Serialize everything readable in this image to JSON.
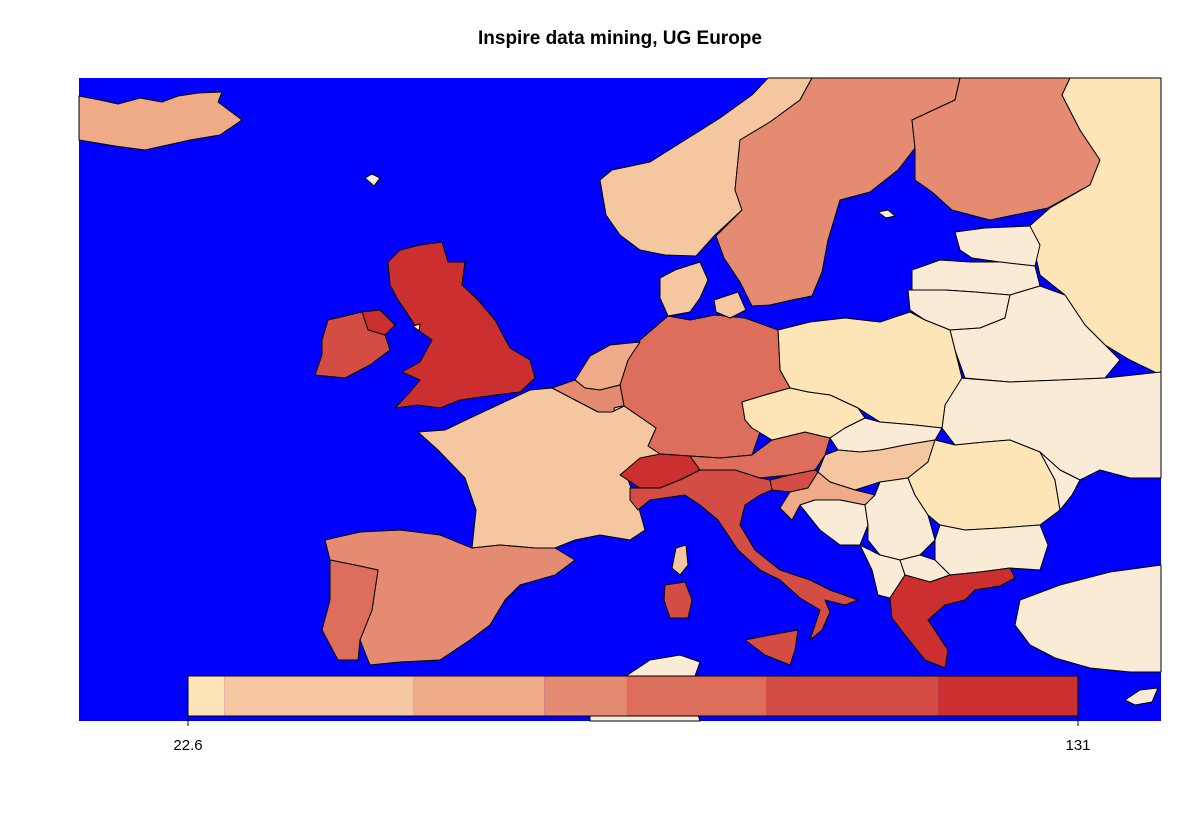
{
  "map": {
    "title": "Inspire data mining, UG Europe",
    "colors": {
      "sea": "#0000ff",
      "no_data": "#faebd7",
      "outline": "#000000"
    }
  },
  "legend": {
    "min_label": "22.6",
    "max_label": "131",
    "min": 22.6,
    "max": 131,
    "bins": [
      {
        "from": 22.6,
        "to": 27.0,
        "color": "#fee5b8"
      },
      {
        "from": 27.0,
        "to": 50.0,
        "color": "#f5c7a0"
      },
      {
        "from": 50.0,
        "to": 66.0,
        "color": "#efaa88"
      },
      {
        "from": 66.0,
        "to": 76.0,
        "color": "#e58b72"
      },
      {
        "from": 76.0,
        "to": 93.0,
        "color": "#dd6e5b"
      },
      {
        "from": 93.0,
        "to": 114.0,
        "color": "#d44d45"
      },
      {
        "from": 114.0,
        "to": 131.0,
        "color": "#cc2f30"
      }
    ]
  }
}
